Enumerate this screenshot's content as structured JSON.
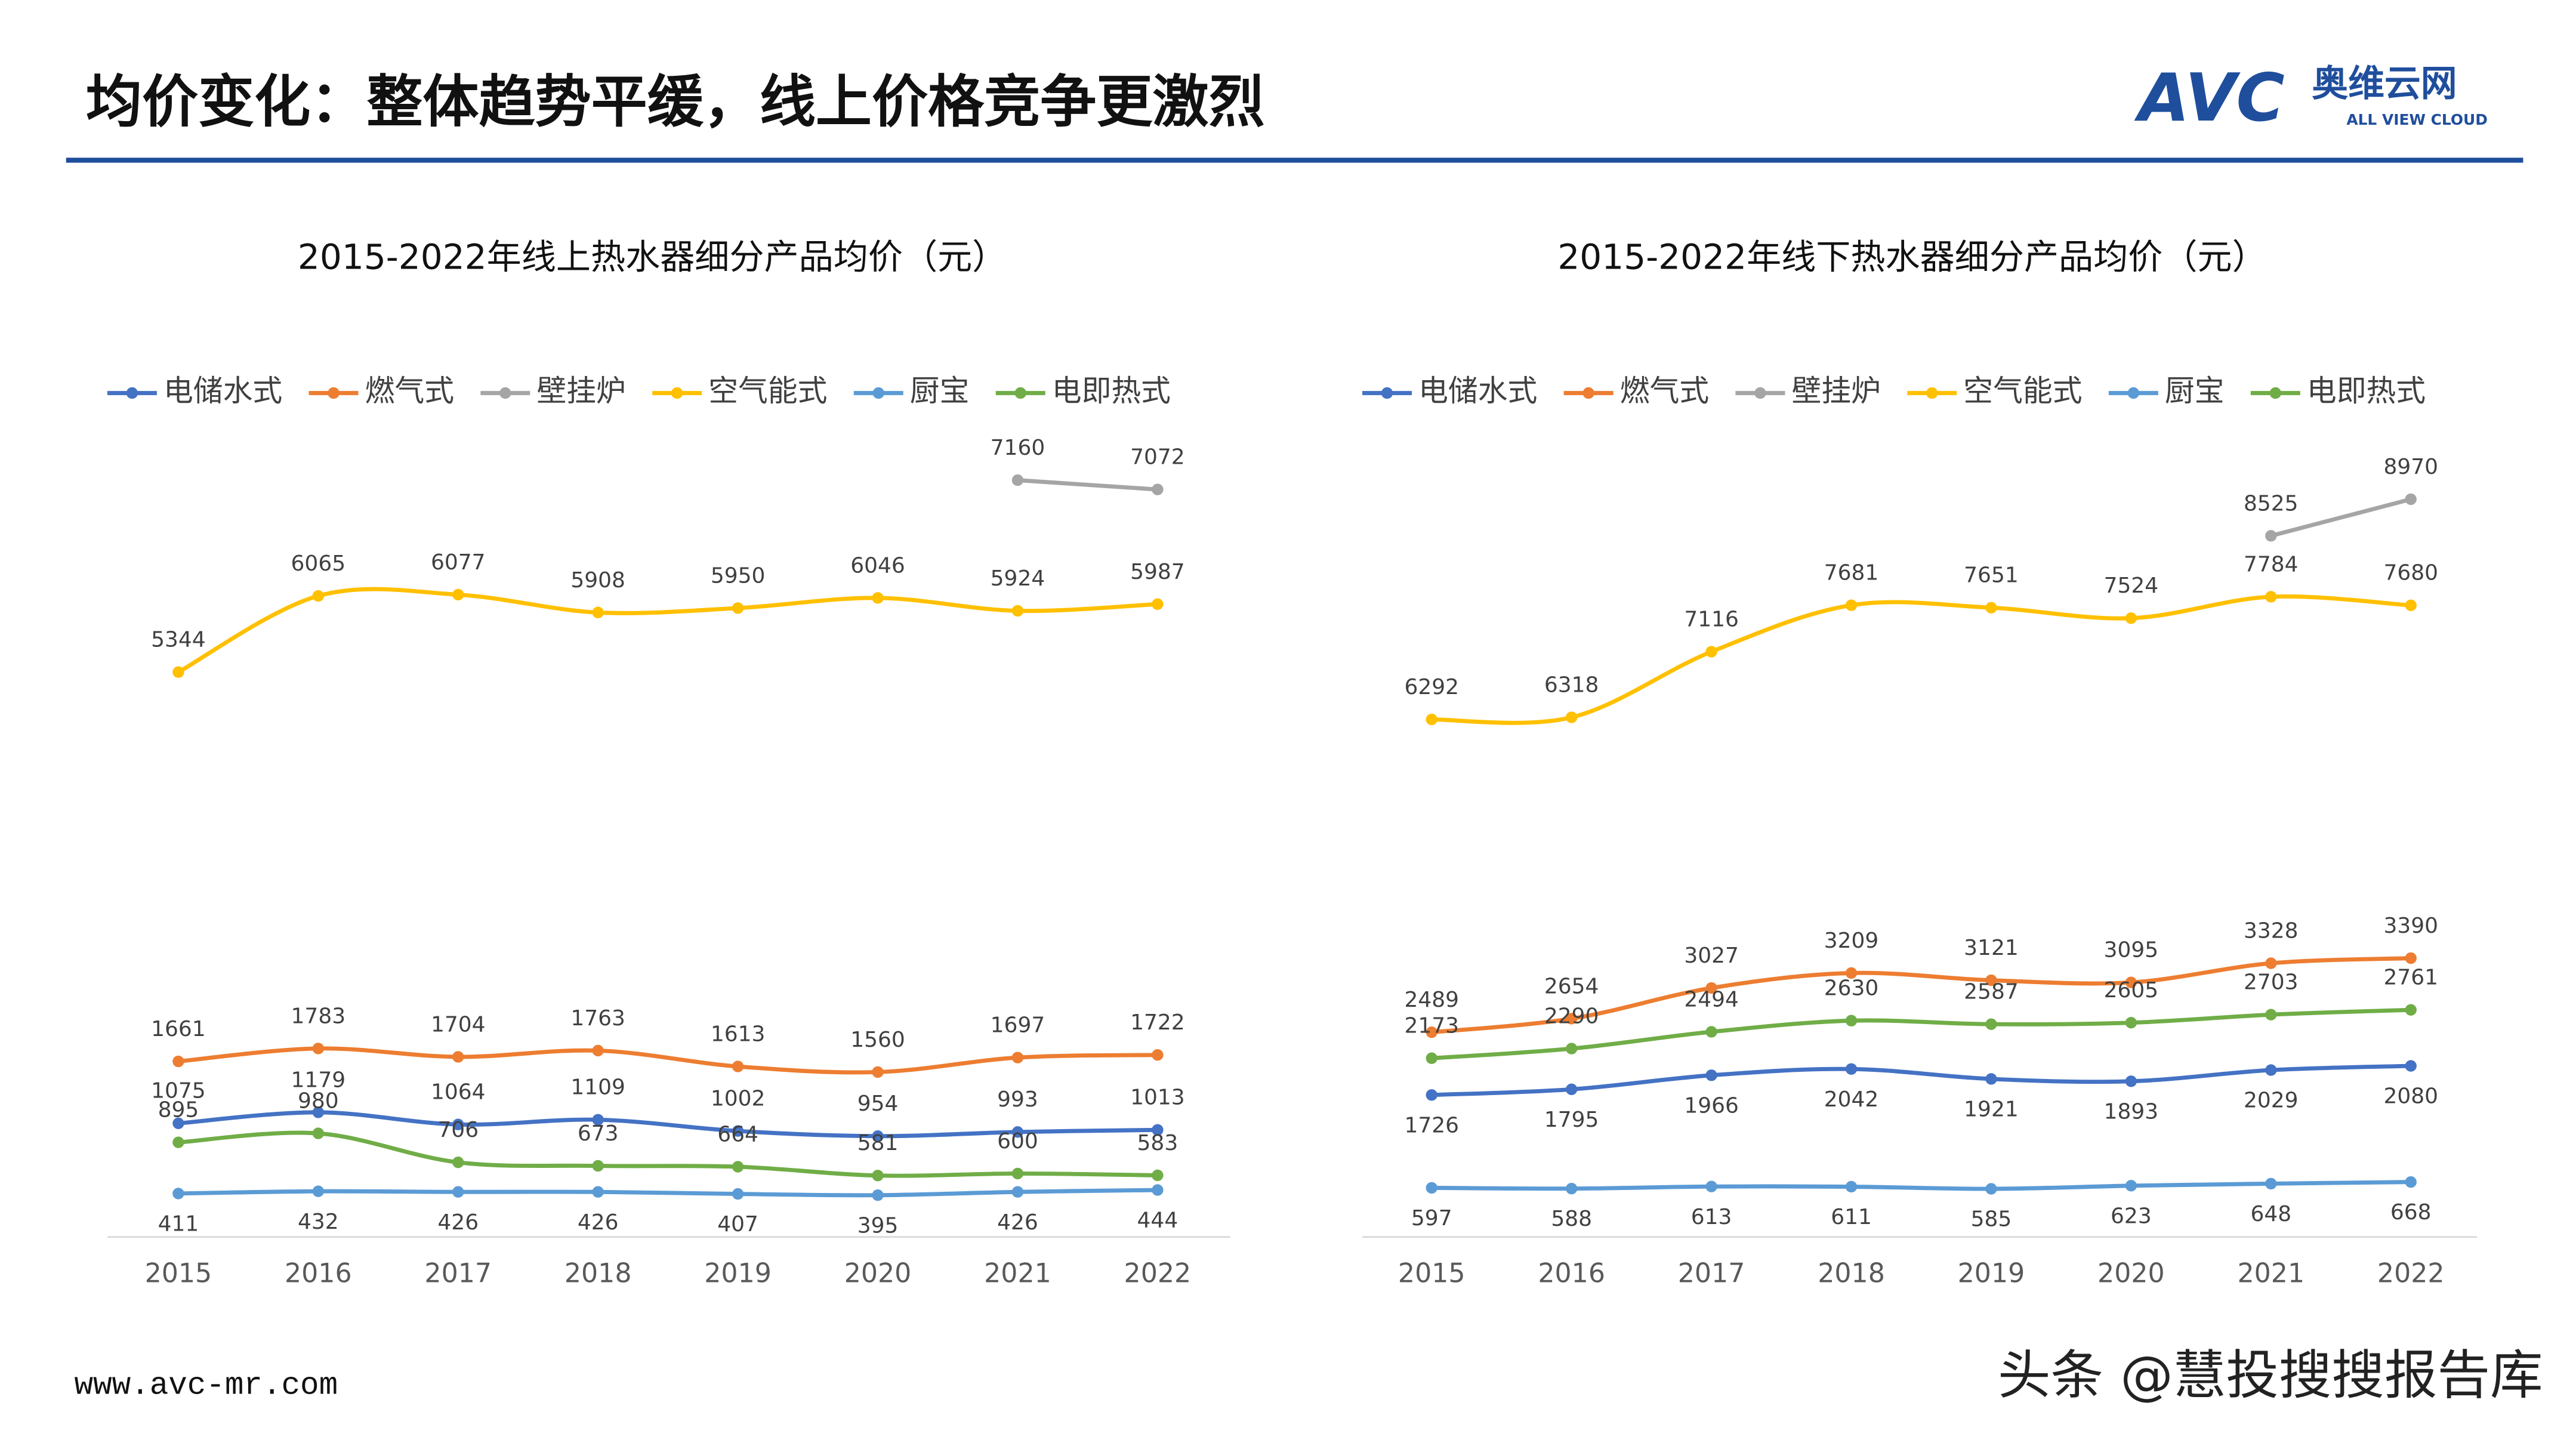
{
  "header": {
    "title": "均价变化：整体趋势平缓，线上价格竞争更激烈",
    "logo": "AVC",
    "logo_cn": "奥维云网",
    "logo_en": "ALL VIEW CLOUD"
  },
  "footer": {
    "url": "www.avc-mr.com",
    "watermark": "头条 @慧投搜搜报告库"
  },
  "chart_data": [
    {
      "type": "line",
      "title": "2015-2022年线上热水器细分产品均价（元）",
      "categories": [
        "2015",
        "2016",
        "2017",
        "2018",
        "2019",
        "2020",
        "2021",
        "2022"
      ],
      "ylim": [
        0,
        8000
      ],
      "legend": "top",
      "series": [
        {
          "name": "电储水式",
          "color": "#4472c4",
          "values": [
            1075,
            1179,
            1064,
            1109,
            1002,
            954,
            993,
            1013
          ]
        },
        {
          "name": "燃气式",
          "color": "#ed7d31",
          "values": [
            1661,
            1783,
            1704,
            1763,
            1613,
            1560,
            1697,
            1722
          ]
        },
        {
          "name": "壁挂炉",
          "color": "#a5a5a5",
          "values": [
            null,
            null,
            null,
            null,
            null,
            null,
            7160,
            7072
          ]
        },
        {
          "name": "空气能式",
          "color": "#ffc000",
          "values": [
            5344,
            6065,
            6077,
            5908,
            5950,
            6046,
            5924,
            5987
          ]
        },
        {
          "name": "厨宝",
          "color": "#5b9bd5",
          "values": [
            411,
            432,
            426,
            426,
            407,
            395,
            426,
            444
          ]
        },
        {
          "name": "电即热式",
          "color": "#70ad47",
          "values": [
            895,
            980,
            706,
            673,
            664,
            581,
            600,
            583
          ]
        }
      ]
    },
    {
      "type": "line",
      "title": "2015-2022年线下热水器细分产品均价（元）",
      "categories": [
        "2015",
        "2016",
        "2017",
        "2018",
        "2019",
        "2020",
        "2021",
        "2022"
      ],
      "ylim": [
        0,
        10000
      ],
      "legend": "top",
      "series": [
        {
          "name": "电储水式",
          "color": "#4472c4",
          "values": [
            1726,
            1795,
            1966,
            2042,
            1921,
            1893,
            2029,
            2080
          ]
        },
        {
          "name": "燃气式",
          "color": "#ed7d31",
          "values": [
            2489,
            2654,
            3027,
            3209,
            3121,
            3095,
            3328,
            3390
          ]
        },
        {
          "name": "壁挂炉",
          "color": "#a5a5a5",
          "values": [
            null,
            null,
            null,
            null,
            null,
            null,
            8525,
            8970
          ]
        },
        {
          "name": "空气能式",
          "color": "#ffc000",
          "values": [
            6292,
            6318,
            7116,
            7681,
            7651,
            7524,
            7784,
            7680
          ]
        },
        {
          "name": "厨宝",
          "color": "#5b9bd5",
          "values": [
            597,
            588,
            613,
            611,
            585,
            623,
            648,
            668
          ]
        },
        {
          "name": "电即热式",
          "color": "#70ad47",
          "values": [
            2173,
            2290,
            2494,
            2630,
            2587,
            2605,
            2703,
            2761
          ]
        }
      ]
    }
  ]
}
